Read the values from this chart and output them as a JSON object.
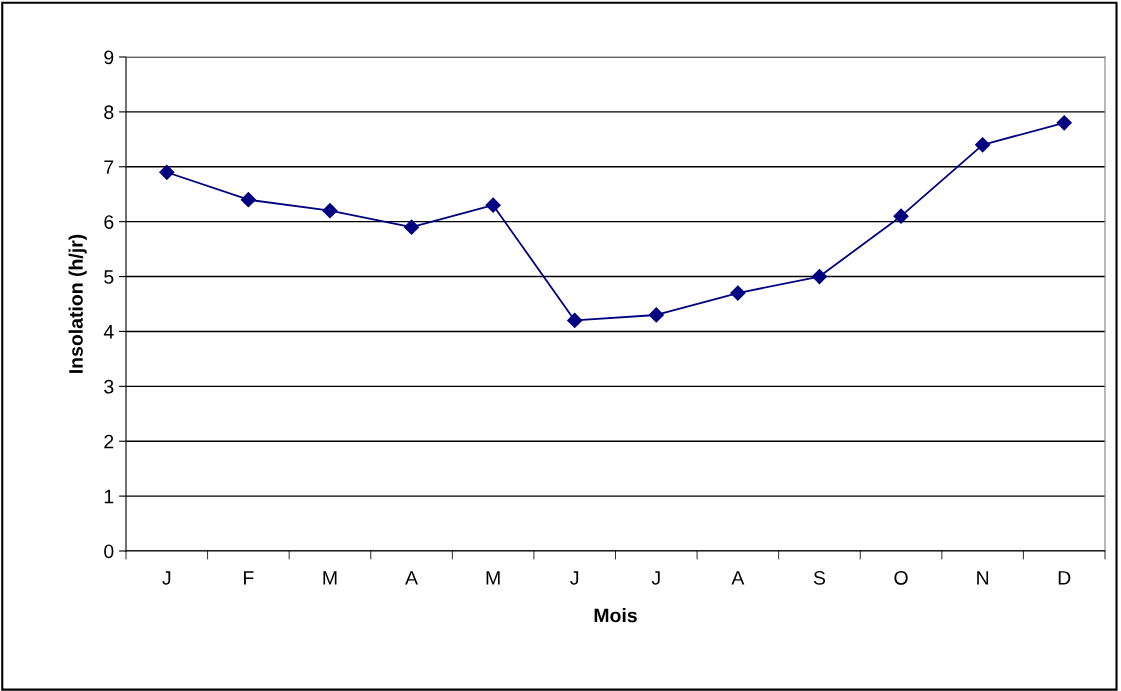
{
  "chart_data": {
    "type": "line",
    "xlabel": "Mois",
    "ylabel": "Insolation (h/jr)",
    "categories": [
      "J",
      "F",
      "M",
      "A",
      "M",
      "J",
      "J",
      "A",
      "S",
      "O",
      "N",
      "D"
    ],
    "series": [
      {
        "color": "#000080",
        "values": [
          6.9,
          6.4,
          6.2,
          5.9,
          6.3,
          4.2,
          4.3,
          4.7,
          5.0,
          6.1,
          7.4,
          7.8
        ]
      }
    ],
    "ylim": [
      0,
      9
    ],
    "yticks": [
      0,
      1,
      2,
      3,
      4,
      5,
      6,
      7,
      8,
      9
    ],
    "grid": "y",
    "marker": "diamond",
    "line_style": "solid"
  }
}
